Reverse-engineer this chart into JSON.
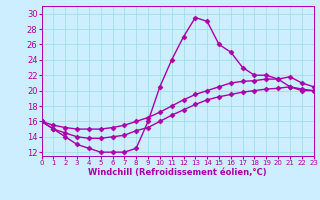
{
  "x_ticks": [
    0,
    1,
    2,
    3,
    4,
    5,
    6,
    7,
    8,
    9,
    10,
    11,
    12,
    13,
    14,
    15,
    16,
    17,
    18,
    19,
    20,
    21,
    22,
    23
  ],
  "line1_main": {
    "x": [
      0,
      1,
      2,
      3,
      4,
      5,
      6,
      7,
      8,
      9,
      10,
      11,
      12,
      13,
      14,
      15,
      16,
      17,
      18,
      19,
      20,
      21,
      22,
      23
    ],
    "y": [
      16,
      15,
      14,
      13,
      12.5,
      12,
      12,
      12,
      12.5,
      16,
      20.5,
      24,
      27,
      29.5,
      29,
      26,
      25,
      23,
      22,
      22,
      21.5,
      20.5,
      20,
      20
    ]
  },
  "line2_upper": {
    "x": [
      0,
      1,
      2,
      3,
      4,
      5,
      6,
      7,
      8,
      9,
      10,
      11,
      12,
      13,
      14,
      15,
      16,
      17,
      18,
      19,
      20,
      21,
      22,
      23
    ],
    "y": [
      16,
      15.5,
      15.2,
      15,
      15,
      15,
      15.2,
      15.5,
      16.0,
      16.5,
      17.2,
      18,
      18.8,
      19.5,
      20,
      20.5,
      21,
      21.2,
      21.3,
      21.5,
      21.5,
      21.8,
      21,
      20.5
    ]
  },
  "line3_lower": {
    "x": [
      0,
      1,
      2,
      3,
      4,
      5,
      6,
      7,
      8,
      9,
      10,
      11,
      12,
      13,
      14,
      15,
      16,
      17,
      18,
      19,
      20,
      21,
      22,
      23
    ],
    "y": [
      16,
      15.0,
      14.5,
      14.0,
      13.8,
      13.8,
      14.0,
      14.2,
      14.8,
      15.2,
      16.0,
      16.8,
      17.5,
      18.2,
      18.8,
      19.2,
      19.5,
      19.8,
      20.0,
      20.2,
      20.3,
      20.5,
      20.2,
      20.0
    ]
  },
  "color": "#aa00aa",
  "marker": "D",
  "markersize": 2.5,
  "linewidth": 1.0,
  "xlim": [
    0,
    23
  ],
  "ylim": [
    11.5,
    31
  ],
  "yticks": [
    12,
    14,
    16,
    18,
    20,
    22,
    24,
    26,
    28,
    30
  ],
  "xlabel": "Windchill (Refroidissement éolien,°C)",
  "bg_color": "#cceeff",
  "grid_color": "#99dddd",
  "line_color": "#aa00aa",
  "tick_color": "#aa00aa",
  "label_color": "#aa00aa"
}
